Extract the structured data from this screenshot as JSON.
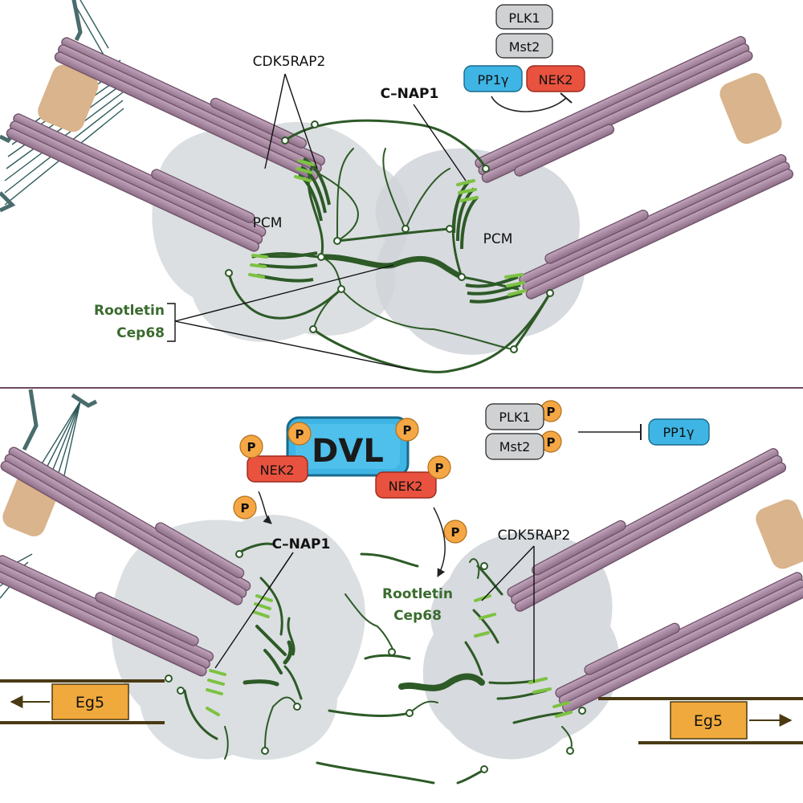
{
  "top_panel": {
    "cdk5rap2": "CDK5RAP2",
    "cnap1": "C–NAP1",
    "pcm_left": "PCM",
    "pcm_right": "PCM",
    "rootletin": "Rootletin",
    "cep68": "Cep68",
    "plk1": "PLK1",
    "mst2": "Mst2",
    "pp1g": "PP1γ",
    "nek2": "NEK2"
  },
  "bottom_panel": {
    "dvl": "DVL",
    "nek2_left": "NEK2",
    "nek2_right": "NEK2",
    "phospho": "P",
    "plk1": "PLK1",
    "mst2": "Mst2",
    "pp1g": "PP1γ",
    "cnap1": "C–NAP1",
    "rootletin": "Rootletin",
    "cep68": "Cep68",
    "cdk5rap2": "CDK5RAP2",
    "eg5_left": "Eg5",
    "eg5_right": "Eg5"
  },
  "colors": {
    "centriole": "#a68aa0",
    "centriole_dark": "#6e5068",
    "linker": "#2d5a27",
    "cnap1_green": "#7dc242",
    "pcm": "#d5d9dc",
    "plk1_gray": "#cfd1d3",
    "pp1g_blue": "#3eb5e5",
    "nek2_red": "#e8523e",
    "phospho_orange": "#f4a744",
    "eg5_orange": "#f0a93c",
    "appendage": "#d9b48c",
    "spindle": "#2f5a5a",
    "divider": "#6b4a5e"
  }
}
